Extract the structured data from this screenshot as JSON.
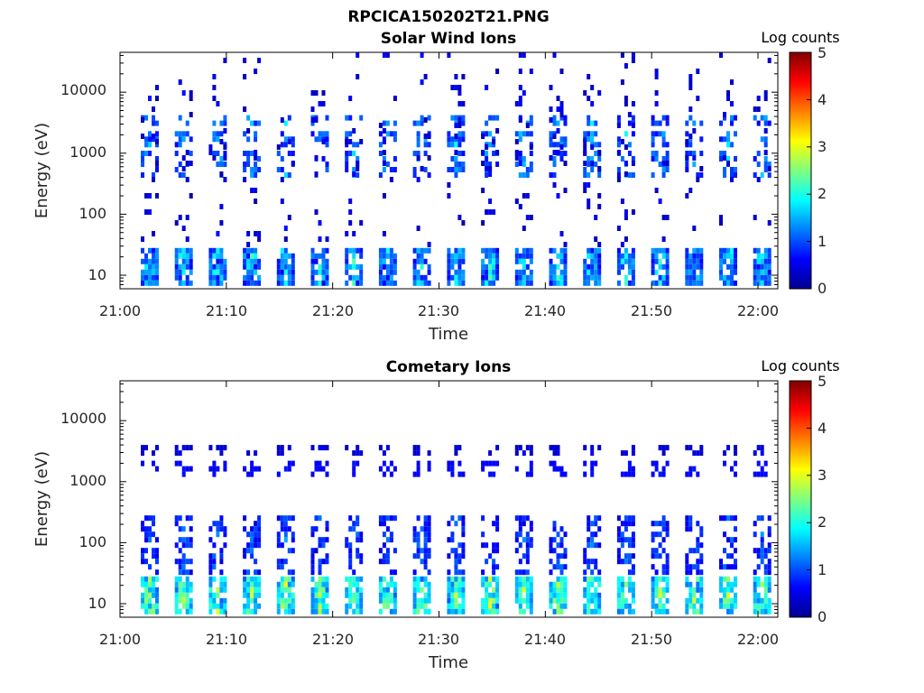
{
  "figure": {
    "title": "RPCICA150202T21.PNG"
  },
  "chart_data": [
    {
      "type": "heatmap",
      "title": "Solar Wind Ions",
      "xlabel": "Time",
      "ylabel": "Energy (eV)",
      "y_scale": "log",
      "ylim": [
        6,
        45000
      ],
      "xlim": [
        "21:00",
        "22:02"
      ],
      "x_ticks": [
        "21:00",
        "21:10",
        "21:20",
        "21:30",
        "21:40",
        "21:50",
        "22:00"
      ],
      "y_ticks": [
        10,
        100,
        1000,
        10000
      ],
      "y_tick_labels": [
        "10",
        "100",
        "1000",
        "10000"
      ],
      "colorbar": {
        "label": "Log counts",
        "range": [
          0,
          5
        ],
        "ticks": [
          "0",
          "1",
          "2",
          "3",
          "4",
          "5"
        ],
        "colormap": "jet"
      },
      "scan_times_min": [
        2.8,
        6.0,
        9.2,
        12.4,
        15.6,
        18.8,
        22.0,
        25.2,
        28.4,
        31.6,
        34.8,
        38.0,
        41.2,
        44.4,
        47.6,
        50.8,
        54.0,
        57.2,
        60.4
      ],
      "bands": [
        {
          "energy_range_eV": [
            6,
            28
          ],
          "log_counts_range": [
            0.5,
            2.5
          ]
        },
        {
          "energy_range_eV": [
            450,
            1100
          ],
          "log_counts_range": [
            0.5,
            2.0
          ]
        },
        {
          "energy_range_eV": [
            1300,
            2300
          ],
          "log_counts_range": [
            0.5,
            2.0
          ]
        },
        {
          "energy_range_eV": [
            2800,
            4200
          ],
          "log_counts_range": [
            0.5,
            2.0
          ]
        },
        {
          "energy_range_eV": [
            30,
            45000
          ],
          "log_counts_range": [
            0.2,
            0.8
          ]
        }
      ]
    },
    {
      "type": "heatmap",
      "title": "Cometary Ions",
      "xlabel": "Time",
      "ylabel": "Energy (eV)",
      "y_scale": "log",
      "ylim": [
        6,
        45000
      ],
      "xlim": [
        "21:00",
        "22:02"
      ],
      "x_ticks": [
        "21:00",
        "21:10",
        "21:20",
        "21:30",
        "21:40",
        "21:50",
        "22:00"
      ],
      "y_ticks": [
        10,
        100,
        1000,
        10000
      ],
      "y_tick_labels": [
        "10",
        "100",
        "1000",
        "10000"
      ],
      "colorbar": {
        "label": "Log counts",
        "range": [
          0,
          5
        ],
        "ticks": [
          "0",
          "1",
          "2",
          "3",
          "4",
          "5"
        ],
        "colormap": "jet"
      },
      "scan_times_min": [
        2.8,
        6.0,
        9.2,
        12.4,
        15.6,
        18.8,
        22.0,
        25.2,
        28.4,
        31.6,
        34.8,
        38.0,
        41.2,
        44.4,
        47.6,
        50.8,
        54.0,
        57.2,
        60.4
      ],
      "bands": [
        {
          "energy_range_eV": [
            6,
            28
          ],
          "log_counts_range": [
            1.0,
            3.3
          ]
        },
        {
          "energy_range_eV": [
            30,
            280
          ],
          "log_counts_range": [
            0.4,
            1.5
          ]
        },
        {
          "energy_range_eV": [
            1400,
            2200
          ],
          "log_counts_range": [
            0.5,
            0.8
          ]
        },
        {
          "energy_range_eV": [
            3000,
            4000
          ],
          "log_counts_range": [
            0.3,
            0.6
          ]
        }
      ]
    }
  ]
}
